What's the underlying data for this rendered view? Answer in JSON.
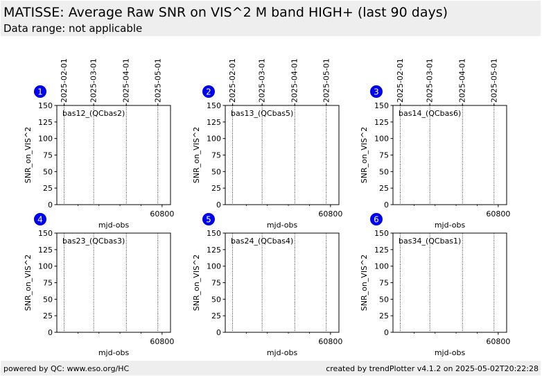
{
  "header": {
    "title": "MATISSE: Average Raw SNR on VIS^2 M band HIGH+ (last 90 days)",
    "subtitle": "Data range: not applicable"
  },
  "footer": {
    "left": "powered by QC: www.eso.org/HC",
    "right": "created by trendPlotter v4.1.2 on 2025-05-02T20:22:28"
  },
  "colors": {
    "badge": "#0000ee",
    "header_bg": "#eeeeee",
    "footer_bg": "#eeeeee"
  },
  "chart_data": [
    {
      "type": "scatter",
      "badge": "1",
      "label": "bas12_(QCbas2)",
      "xlabel": "mjd-obs",
      "ylabel": "SNR_on_VIS^2",
      "ylim": [
        0,
        150
      ],
      "yticks": [
        0,
        25,
        50,
        75,
        100,
        125,
        150
      ],
      "xlim": [
        60700,
        60808
      ],
      "xticks": [
        60800
      ],
      "top_date_ticks": [
        {
          "label": "2025-02-01",
          "mjd": 60707
        },
        {
          "label": "2025-03-01",
          "mjd": 60735
        },
        {
          "label": "2025-04-01",
          "mjd": 60766
        },
        {
          "label": "2025-05-01",
          "mjd": 60796
        }
      ],
      "values": []
    },
    {
      "type": "scatter",
      "badge": "2",
      "label": "bas13_(QCbas5)",
      "xlabel": "mjd-obs",
      "ylabel": "SNR_on_VIS^2",
      "ylim": [
        0,
        150
      ],
      "yticks": [
        0,
        25,
        50,
        75,
        100,
        125,
        150
      ],
      "xlim": [
        60700,
        60808
      ],
      "xticks": [
        60800
      ],
      "top_date_ticks": [
        {
          "label": "2025-02-01",
          "mjd": 60707
        },
        {
          "label": "2025-03-01",
          "mjd": 60735
        },
        {
          "label": "2025-04-01",
          "mjd": 60766
        },
        {
          "label": "2025-05-01",
          "mjd": 60796
        }
      ],
      "values": []
    },
    {
      "type": "scatter",
      "badge": "3",
      "label": "bas14_(QCbas6)",
      "xlabel": "mjd-obs",
      "ylabel": "SNR_on_VIS^2",
      "ylim": [
        0,
        150
      ],
      "yticks": [
        0,
        25,
        50,
        75,
        100,
        125,
        150
      ],
      "xlim": [
        60700,
        60808
      ],
      "xticks": [
        60800
      ],
      "top_date_ticks": [
        {
          "label": "2025-02-01",
          "mjd": 60707
        },
        {
          "label": "2025-03-01",
          "mjd": 60735
        },
        {
          "label": "2025-04-01",
          "mjd": 60766
        },
        {
          "label": "2025-05-01",
          "mjd": 60796
        }
      ],
      "values": []
    },
    {
      "type": "scatter",
      "badge": "4",
      "label": "bas23_(QCbas3)",
      "xlabel": "mjd-obs",
      "ylabel": "SNR_on_VIS^2",
      "ylim": [
        0,
        150
      ],
      "yticks": [
        0,
        25,
        50,
        75,
        100,
        125,
        150
      ],
      "xlim": [
        60700,
        60808
      ],
      "xticks": [
        60800
      ],
      "top_date_ticks": [
        {
          "label": "2025-02-01",
          "mjd": 60707
        },
        {
          "label": "2025-03-01",
          "mjd": 60735
        },
        {
          "label": "2025-04-01",
          "mjd": 60766
        },
        {
          "label": "2025-05-01",
          "mjd": 60796
        }
      ],
      "values": []
    },
    {
      "type": "scatter",
      "badge": "5",
      "label": "bas24_(QCbas4)",
      "xlabel": "mjd-obs",
      "ylabel": "SNR_on_VIS^2",
      "ylim": [
        0,
        150
      ],
      "yticks": [
        0,
        25,
        50,
        75,
        100,
        125,
        150
      ],
      "xlim": [
        60700,
        60808
      ],
      "xticks": [
        60800
      ],
      "top_date_ticks": [
        {
          "label": "2025-02-01",
          "mjd": 60707
        },
        {
          "label": "2025-03-01",
          "mjd": 60735
        },
        {
          "label": "2025-04-01",
          "mjd": 60766
        },
        {
          "label": "2025-05-01",
          "mjd": 60796
        }
      ],
      "values": []
    },
    {
      "type": "scatter",
      "badge": "6",
      "label": "bas34_(QCbas1)",
      "xlabel": "mjd-obs",
      "ylabel": "SNR_on_VIS^2",
      "ylim": [
        0,
        150
      ],
      "yticks": [
        0,
        25,
        50,
        75,
        100,
        125,
        150
      ],
      "xlim": [
        60700,
        60808
      ],
      "xticks": [
        60800
      ],
      "top_date_ticks": [
        {
          "label": "2025-02-01",
          "mjd": 60707
        },
        {
          "label": "2025-03-01",
          "mjd": 60735
        },
        {
          "label": "2025-04-01",
          "mjd": 60766
        },
        {
          "label": "2025-05-01",
          "mjd": 60796
        }
      ],
      "values": []
    }
  ]
}
